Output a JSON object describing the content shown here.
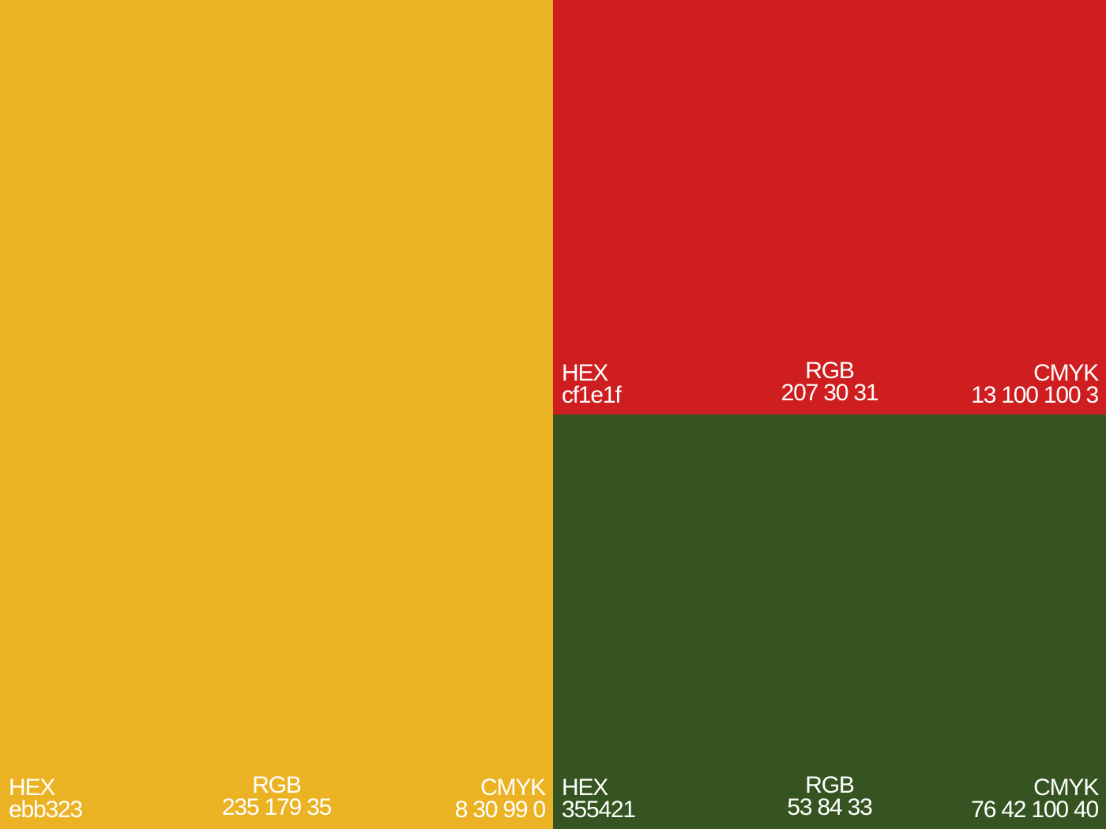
{
  "swatches": {
    "yellow": {
      "color": "#ebb323",
      "hex_label": "HEX",
      "hex_value": "ebb323",
      "rgb_label": "RGB",
      "rgb_value": "235 179 35",
      "cmyk_label": "CMYK",
      "cmyk_value": "8 30 99 0"
    },
    "red": {
      "color": "#cf1e1f",
      "hex_label": "HEX",
      "hex_value": "cf1e1f",
      "rgb_label": "RGB",
      "rgb_value": "207 30 31",
      "cmyk_label": "CMYK",
      "cmyk_value": "13 100 100 3"
    },
    "green": {
      "color": "#355421",
      "hex_label": "HEX",
      "hex_value": "355421",
      "rgb_label": "RGB",
      "rgb_value": "53 84 33",
      "cmyk_label": "CMYK",
      "cmyk_value": "76 42 100 40"
    }
  }
}
